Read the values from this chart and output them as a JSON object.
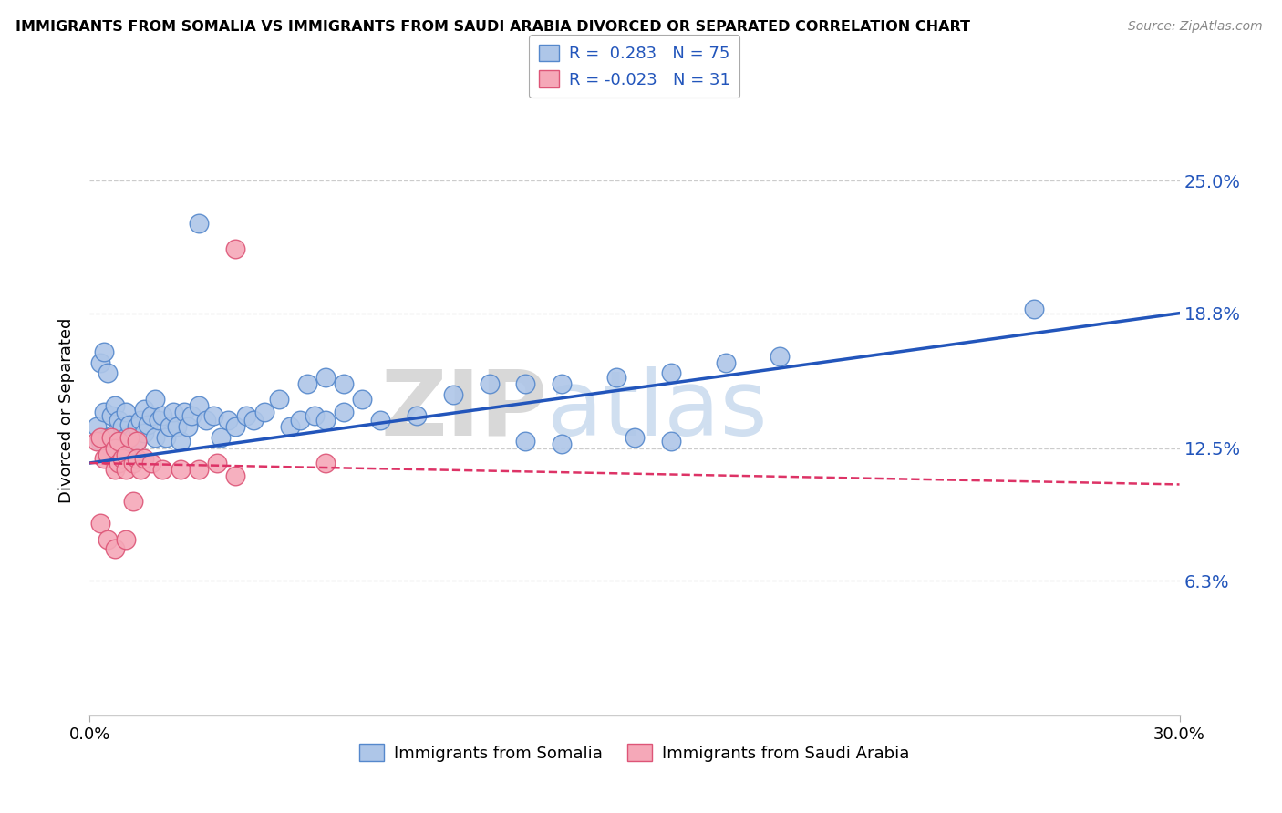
{
  "title": "IMMIGRANTS FROM SOMALIA VS IMMIGRANTS FROM SAUDI ARABIA DIVORCED OR SEPARATED CORRELATION CHART",
  "source": "Source: ZipAtlas.com",
  "ylabel": "Divorced or Separated",
  "xmin": 0.0,
  "xmax": 0.3,
  "ymin": 0.0,
  "ymax": 0.285,
  "yticks": [
    0.063,
    0.125,
    0.188,
    0.25
  ],
  "ytick_labels": [
    "6.3%",
    "12.5%",
    "18.8%",
    "25.0%"
  ],
  "somalia_color": "#aec6e8",
  "somalia_edge": "#5588cc",
  "saudi_color": "#f5a8b8",
  "saudi_edge": "#dd5577",
  "somalia_R": 0.283,
  "somalia_N": 75,
  "saudi_R": -0.023,
  "saudi_N": 31,
  "somalia_line_color": "#2255bb",
  "saudi_line_color": "#dd3366",
  "watermark_zip": "ZIP",
  "watermark_atlas": "atlas",
  "somalia_line_start_y": 0.118,
  "somalia_line_end_y": 0.188,
  "saudi_line_start_y": 0.118,
  "saudi_line_end_y": 0.108,
  "somalia_scatter_x": [
    0.002,
    0.003,
    0.004,
    0.005,
    0.006,
    0.006,
    0.007,
    0.007,
    0.008,
    0.008,
    0.009,
    0.009,
    0.01,
    0.01,
    0.011,
    0.011,
    0.012,
    0.012,
    0.013,
    0.013,
    0.014,
    0.015,
    0.015,
    0.016,
    0.017,
    0.018,
    0.018,
    0.019,
    0.02,
    0.021,
    0.022,
    0.023,
    0.024,
    0.025,
    0.026,
    0.027,
    0.028,
    0.03,
    0.032,
    0.034,
    0.036,
    0.038,
    0.04,
    0.043,
    0.045,
    0.048,
    0.052,
    0.055,
    0.058,
    0.062,
    0.065,
    0.07,
    0.075,
    0.08,
    0.09,
    0.1,
    0.11,
    0.12,
    0.13,
    0.145,
    0.16,
    0.175,
    0.19,
    0.06,
    0.065,
    0.07,
    0.12,
    0.13,
    0.15,
    0.16,
    0.26,
    0.03,
    0.003,
    0.004,
    0.005
  ],
  "somalia_scatter_y": [
    0.135,
    0.128,
    0.142,
    0.13,
    0.125,
    0.14,
    0.132,
    0.145,
    0.128,
    0.138,
    0.135,
    0.125,
    0.13,
    0.142,
    0.136,
    0.125,
    0.13,
    0.12,
    0.135,
    0.128,
    0.138,
    0.132,
    0.143,
    0.136,
    0.14,
    0.13,
    0.148,
    0.138,
    0.14,
    0.13,
    0.135,
    0.142,
    0.135,
    0.128,
    0.142,
    0.135,
    0.14,
    0.145,
    0.138,
    0.14,
    0.13,
    0.138,
    0.135,
    0.14,
    0.138,
    0.142,
    0.148,
    0.135,
    0.138,
    0.14,
    0.138,
    0.142,
    0.148,
    0.138,
    0.14,
    0.15,
    0.155,
    0.155,
    0.155,
    0.158,
    0.16,
    0.165,
    0.168,
    0.155,
    0.158,
    0.155,
    0.128,
    0.127,
    0.13,
    0.128,
    0.19,
    0.23,
    0.165,
    0.17,
    0.16
  ],
  "saudi_scatter_x": [
    0.002,
    0.003,
    0.004,
    0.005,
    0.006,
    0.007,
    0.007,
    0.008,
    0.008,
    0.009,
    0.01,
    0.01,
    0.011,
    0.012,
    0.013,
    0.013,
    0.014,
    0.015,
    0.017,
    0.02,
    0.025,
    0.03,
    0.035,
    0.04,
    0.065,
    0.003,
    0.005,
    0.007,
    0.01,
    0.012,
    0.04
  ],
  "saudi_scatter_y": [
    0.128,
    0.13,
    0.12,
    0.122,
    0.13,
    0.125,
    0.115,
    0.118,
    0.128,
    0.12,
    0.122,
    0.115,
    0.13,
    0.118,
    0.128,
    0.12,
    0.115,
    0.12,
    0.118,
    0.115,
    0.115,
    0.115,
    0.118,
    0.112,
    0.118,
    0.09,
    0.082,
    0.078,
    0.082,
    0.1,
    0.218
  ]
}
